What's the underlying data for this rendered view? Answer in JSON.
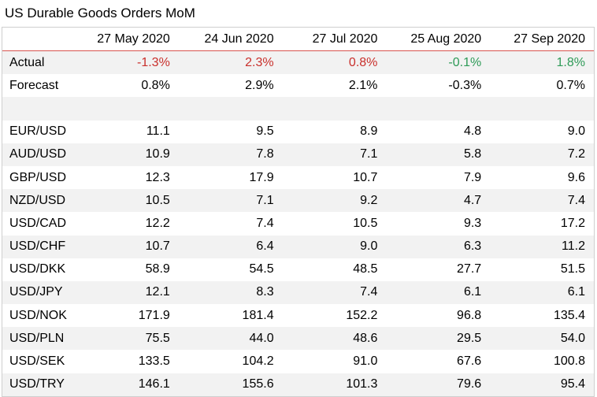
{
  "title": "US Durable Goods Orders MoM",
  "columns": [
    "27 May 2020",
    "24 Jun 2020",
    "27 Jul 2020",
    "25 Aug 2020",
    "27 Sep 2020"
  ],
  "actual": {
    "label": "Actual",
    "values": [
      "-1.3%",
      "2.3%",
      "0.8%",
      "-0.1%",
      "1.8%"
    ],
    "colors": [
      "red",
      "red",
      "red",
      "green",
      "green"
    ]
  },
  "forecast": {
    "label": "Forecast",
    "values": [
      "0.8%",
      "2.9%",
      "2.1%",
      "-0.3%",
      "0.7%"
    ]
  },
  "pairs": [
    {
      "label": "EUR/USD",
      "values": [
        "11.1",
        "9.5",
        "8.9",
        "4.8",
        "9.0"
      ]
    },
    {
      "label": "AUD/USD",
      "values": [
        "10.9",
        "7.8",
        "7.1",
        "5.8",
        "7.2"
      ]
    },
    {
      "label": "GBP/USD",
      "values": [
        "12.3",
        "17.9",
        "10.7",
        "7.9",
        "9.6"
      ]
    },
    {
      "label": "NZD/USD",
      "values": [
        "10.5",
        "7.1",
        "9.2",
        "4.7",
        "7.4"
      ]
    },
    {
      "label": "USD/CAD",
      "values": [
        "12.2",
        "7.4",
        "10.5",
        "9.3",
        "17.2"
      ]
    },
    {
      "label": "USD/CHF",
      "values": [
        "10.7",
        "6.4",
        "9.0",
        "6.3",
        "11.2"
      ]
    },
    {
      "label": "USD/DKK",
      "values": [
        "58.9",
        "54.5",
        "48.5",
        "27.7",
        "51.5"
      ]
    },
    {
      "label": "USD/JPY",
      "values": [
        "12.1",
        "8.3",
        "7.4",
        "6.1",
        "6.1"
      ]
    },
    {
      "label": "USD/NOK",
      "values": [
        "171.9",
        "181.4",
        "152.2",
        "96.8",
        "135.4"
      ]
    },
    {
      "label": "USD/PLN",
      "values": [
        "75.5",
        "44.0",
        "48.6",
        "29.5",
        "54.0"
      ]
    },
    {
      "label": "USD/SEK",
      "values": [
        "133.5",
        "104.2",
        "91.0",
        "67.6",
        "100.8"
      ]
    },
    {
      "label": "USD/TRY",
      "values": [
        "146.1",
        "155.6",
        "101.3",
        "79.6",
        "95.4"
      ]
    }
  ],
  "colors": {
    "negative": "#c9302c",
    "positive": "#2e9a57",
    "header_rule": "#d9534f",
    "shade": "#f2f2f2"
  }
}
